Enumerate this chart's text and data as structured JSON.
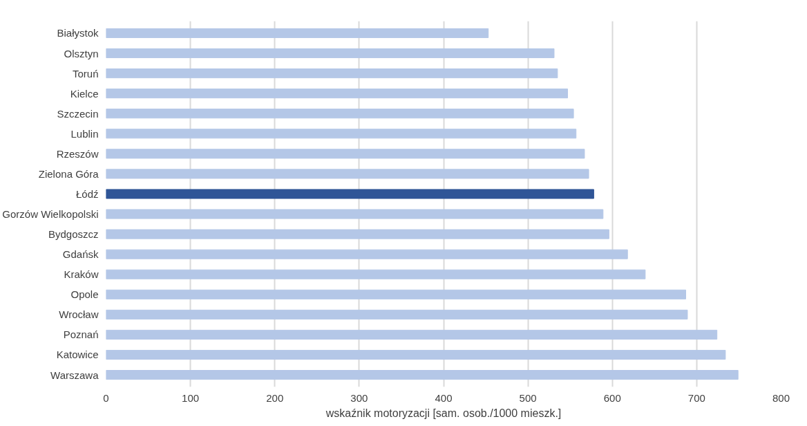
{
  "chart_data": {
    "type": "bar",
    "orientation": "horizontal",
    "categories": [
      "Białystok",
      "Olsztyn",
      "Toruń",
      "Kielce",
      "Szczecin",
      "Lublin",
      "Rzeszów",
      "Zielona Góra",
      "Łódź",
      "Gorzów Wielkopolski",
      "Bydgoszcz",
      "Gdańsk",
      "Kraków",
      "Opole",
      "Wrocław",
      "Poznań",
      "Katowice",
      "Warszawa"
    ],
    "values": [
      453,
      531,
      535,
      547,
      554,
      557,
      567,
      572,
      578,
      589,
      596,
      618,
      639,
      687,
      689,
      724,
      734,
      749
    ],
    "colors": [
      "#b4c7e7",
      "#b4c7e7",
      "#b4c7e7",
      "#b4c7e7",
      "#b4c7e7",
      "#b4c7e7",
      "#b4c7e7",
      "#b4c7e7",
      "#2f5597",
      "#b4c7e7",
      "#b4c7e7",
      "#b4c7e7",
      "#b4c7e7",
      "#b4c7e7",
      "#b4c7e7",
      "#b4c7e7",
      "#b4c7e7",
      "#b4c7e7"
    ],
    "xlabel": "wskaźnik motoryzacji [sam. osob./1000 mieszk.]",
    "xlim": [
      0,
      800
    ],
    "xticks": [
      0,
      100,
      200,
      300,
      400,
      500,
      600,
      700,
      800
    ],
    "grid": "x"
  }
}
